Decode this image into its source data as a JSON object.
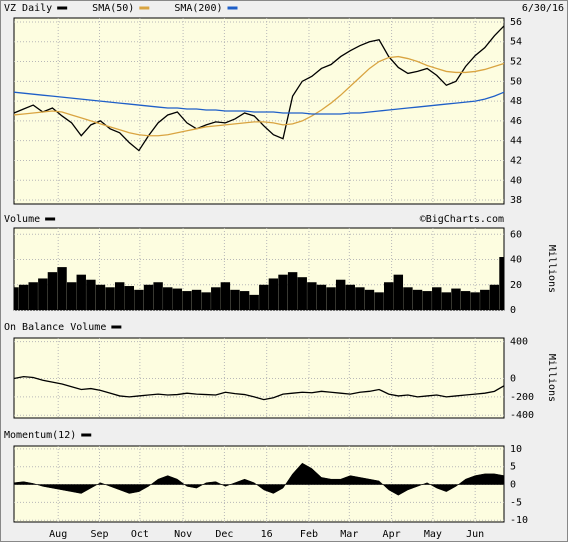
{
  "chart_data": [
    {
      "type": "line",
      "date": "6/30/16",
      "xlim": [
        0,
        51
      ],
      "ylim": [
        37.6,
        56.4
      ],
      "yticks": [
        38,
        40,
        42,
        44,
        46,
        48,
        50,
        52,
        54,
        56
      ],
      "series": [
        {
          "name": "VZ Daily",
          "color": "#000000",
          "values": [
            46.8,
            47.2,
            47.6,
            46.9,
            47.3,
            46.5,
            45.8,
            44.5,
            45.6,
            46.0,
            45.2,
            44.8,
            43.8,
            43.0,
            44.5,
            45.8,
            46.6,
            46.9,
            45.8,
            45.2,
            45.6,
            45.9,
            45.8,
            46.2,
            46.8,
            46.5,
            45.5,
            44.6,
            44.2,
            48.5,
            50.0,
            50.5,
            51.3,
            51.7,
            52.5,
            53.1,
            53.6,
            54.0,
            54.2,
            52.5,
            51.4,
            50.8,
            51.0,
            51.3,
            50.6,
            49.6,
            50.0,
            51.5,
            52.6,
            53.4,
            54.6,
            55.6
          ]
        },
        {
          "name": "SMA(50)",
          "color": "#d9a441",
          "values": [
            46.6,
            46.7,
            46.8,
            46.9,
            47.0,
            46.9,
            46.6,
            46.3,
            46.0,
            45.7,
            45.4,
            45.1,
            44.8,
            44.6,
            44.5,
            44.5,
            44.6,
            44.8,
            45.0,
            45.2,
            45.4,
            45.5,
            45.6,
            45.7,
            45.8,
            45.9,
            45.9,
            45.8,
            45.6,
            45.7,
            46.0,
            46.5,
            47.1,
            47.8,
            48.6,
            49.5,
            50.4,
            51.3,
            52.0,
            52.4,
            52.5,
            52.3,
            52.0,
            51.6,
            51.3,
            51.0,
            50.9,
            50.9,
            51.0,
            51.2,
            51.5,
            51.8
          ]
        },
        {
          "name": "SMA(200)",
          "color": "#1f5fc8",
          "values": [
            48.9,
            48.8,
            48.7,
            48.6,
            48.5,
            48.4,
            48.3,
            48.2,
            48.1,
            48.0,
            47.9,
            47.8,
            47.7,
            47.6,
            47.5,
            47.4,
            47.3,
            47.3,
            47.2,
            47.2,
            47.1,
            47.1,
            47.0,
            47.0,
            47.0,
            46.9,
            46.9,
            46.9,
            46.8,
            46.8,
            46.8,
            46.7,
            46.7,
            46.7,
            46.7,
            46.8,
            46.8,
            46.9,
            47.0,
            47.1,
            47.2,
            47.3,
            47.4,
            47.5,
            47.6,
            47.7,
            47.8,
            47.9,
            48.0,
            48.2,
            48.5,
            48.9
          ]
        }
      ]
    },
    {
      "type": "bar",
      "annotation": "©BigCharts.com",
      "y_label": "Millions",
      "xlim": [
        0,
        51
      ],
      "ylim": [
        0,
        65
      ],
      "yticks": [
        0,
        20,
        40,
        60
      ],
      "series": [
        {
          "name": "Volume",
          "color": "#000000",
          "values": [
            18,
            20,
            22,
            25,
            30,
            34,
            22,
            28,
            24,
            20,
            18,
            22,
            19,
            16,
            20,
            22,
            18,
            17,
            15,
            16,
            14,
            18,
            22,
            16,
            15,
            12,
            20,
            25,
            28,
            30,
            26,
            22,
            20,
            18,
            24,
            20,
            18,
            16,
            14,
            22,
            28,
            18,
            16,
            15,
            18,
            14,
            17,
            15,
            14,
            16,
            20,
            42
          ]
        }
      ]
    },
    {
      "type": "line",
      "y_label": "Millions",
      "xlim": [
        0,
        51
      ],
      "ylim": [
        -430,
        440
      ],
      "yticks": [
        -400,
        -200,
        0,
        400
      ],
      "series": [
        {
          "name": "On Balance Volume",
          "color": "#000000",
          "values": [
            0,
            20,
            10,
            -20,
            -40,
            -60,
            -90,
            -120,
            -110,
            -130,
            -160,
            -190,
            -200,
            -190,
            -180,
            -170,
            -180,
            -175,
            -160,
            -170,
            -175,
            -180,
            -150,
            -165,
            -175,
            -200,
            -230,
            -210,
            -170,
            -160,
            -150,
            -155,
            -140,
            -150,
            -160,
            -170,
            -150,
            -140,
            -120,
            -170,
            -190,
            -180,
            -200,
            -190,
            -180,
            -200,
            -190,
            -180,
            -170,
            -160,
            -140,
            -80
          ]
        }
      ]
    },
    {
      "type": "area",
      "xlim": [
        0,
        51
      ],
      "ylim": [
        -10.5,
        10.8
      ],
      "yticks": [
        -10,
        -5,
        0,
        5,
        10
      ],
      "xticks": [
        {
          "value": 4.6,
          "label": "Aug"
        },
        {
          "value": 8.9,
          "label": "Sep"
        },
        {
          "value": 13.1,
          "label": "Oct"
        },
        {
          "value": 17.6,
          "label": "Nov"
        },
        {
          "value": 21.9,
          "label": "Dec"
        },
        {
          "value": 26.3,
          "label": "16"
        },
        {
          "value": 30.7,
          "label": "Feb"
        },
        {
          "value": 34.9,
          "label": "Mar"
        },
        {
          "value": 39.3,
          "label": "Apr"
        },
        {
          "value": 43.6,
          "label": "May"
        },
        {
          "value": 48.0,
          "label": "Jun"
        }
      ],
      "series": [
        {
          "name": "Momentum(12)",
          "color": "#000000",
          "values": [
            0.5,
            0.8,
            0.3,
            -0.5,
            -1,
            -1.5,
            -2,
            -2.5,
            -1,
            0.5,
            -0.5,
            -1.5,
            -2.5,
            -2,
            -0.5,
            1.5,
            2.5,
            1.5,
            -0.5,
            -1,
            0.5,
            0.8,
            -0.5,
            0.5,
            1.5,
            0.5,
            -1.5,
            -2.5,
            -1,
            3,
            6,
            4.5,
            2,
            1.5,
            1.5,
            2.5,
            2,
            1.5,
            1,
            -1.5,
            -3,
            -1.5,
            -0.5,
            0.5,
            -1,
            -2,
            -0.5,
            1.5,
            2.5,
            3,
            3,
            2.5
          ]
        }
      ]
    }
  ]
}
